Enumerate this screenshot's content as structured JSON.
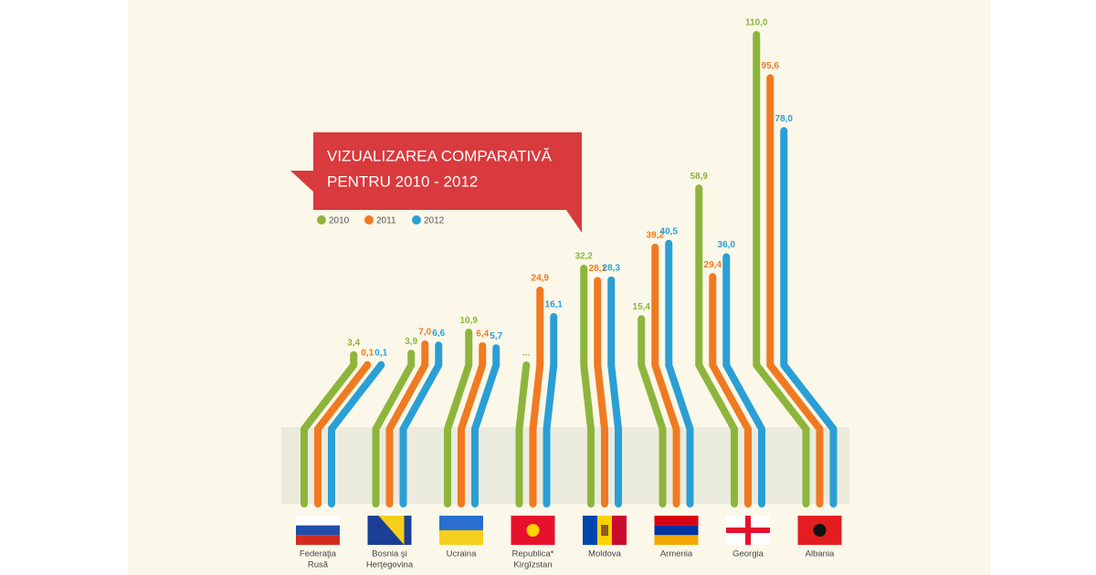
{
  "chart_data": {
    "type": "bent-bar",
    "title": [
      "VIZUALIZAREA COMPARATIVĂ",
      "PENTRU 2010 - 2012"
    ],
    "categories": [
      [
        "Federaţia",
        "Rusă"
      ],
      [
        "Bosnia şi",
        "Herţegovina"
      ],
      [
        "Ucraina"
      ],
      [
        "Republica*",
        "Kirgîzstan"
      ],
      [
        "Moldova"
      ],
      [
        "Armenia"
      ],
      [
        "Georgia"
      ],
      [
        "Albania"
      ]
    ],
    "series": [
      {
        "name": "2010",
        "color": "#8db53c",
        "values": [
          3.4,
          3.9,
          10.9,
          null,
          32.2,
          15.4,
          58.9,
          110.0
        ],
        "value_labels": [
          "3,4",
          "3,9",
          "10,9",
          "...",
          "32,2",
          "15,4",
          "58,9",
          "110,0"
        ]
      },
      {
        "name": "2011",
        "color": "#f07a22",
        "values": [
          0.1,
          7.0,
          6.4,
          24.9,
          28.1,
          39.2,
          29.4,
          95.6
        ],
        "value_labels": [
          "0,1",
          "7,0",
          "6,4",
          "24,9",
          "28,1",
          "39,2",
          "29,4",
          "95,6"
        ]
      },
      {
        "name": "2012",
        "color": "#2a9fd6",
        "values": [
          0.1,
          6.6,
          5.7,
          16.1,
          28.3,
          40.5,
          36.0,
          78.0
        ],
        "value_labels": [
          "0,1",
          "6,6",
          "5,7",
          "16,1",
          "28,3",
          "40,5",
          "36,0",
          "78,0"
        ]
      }
    ]
  }
}
